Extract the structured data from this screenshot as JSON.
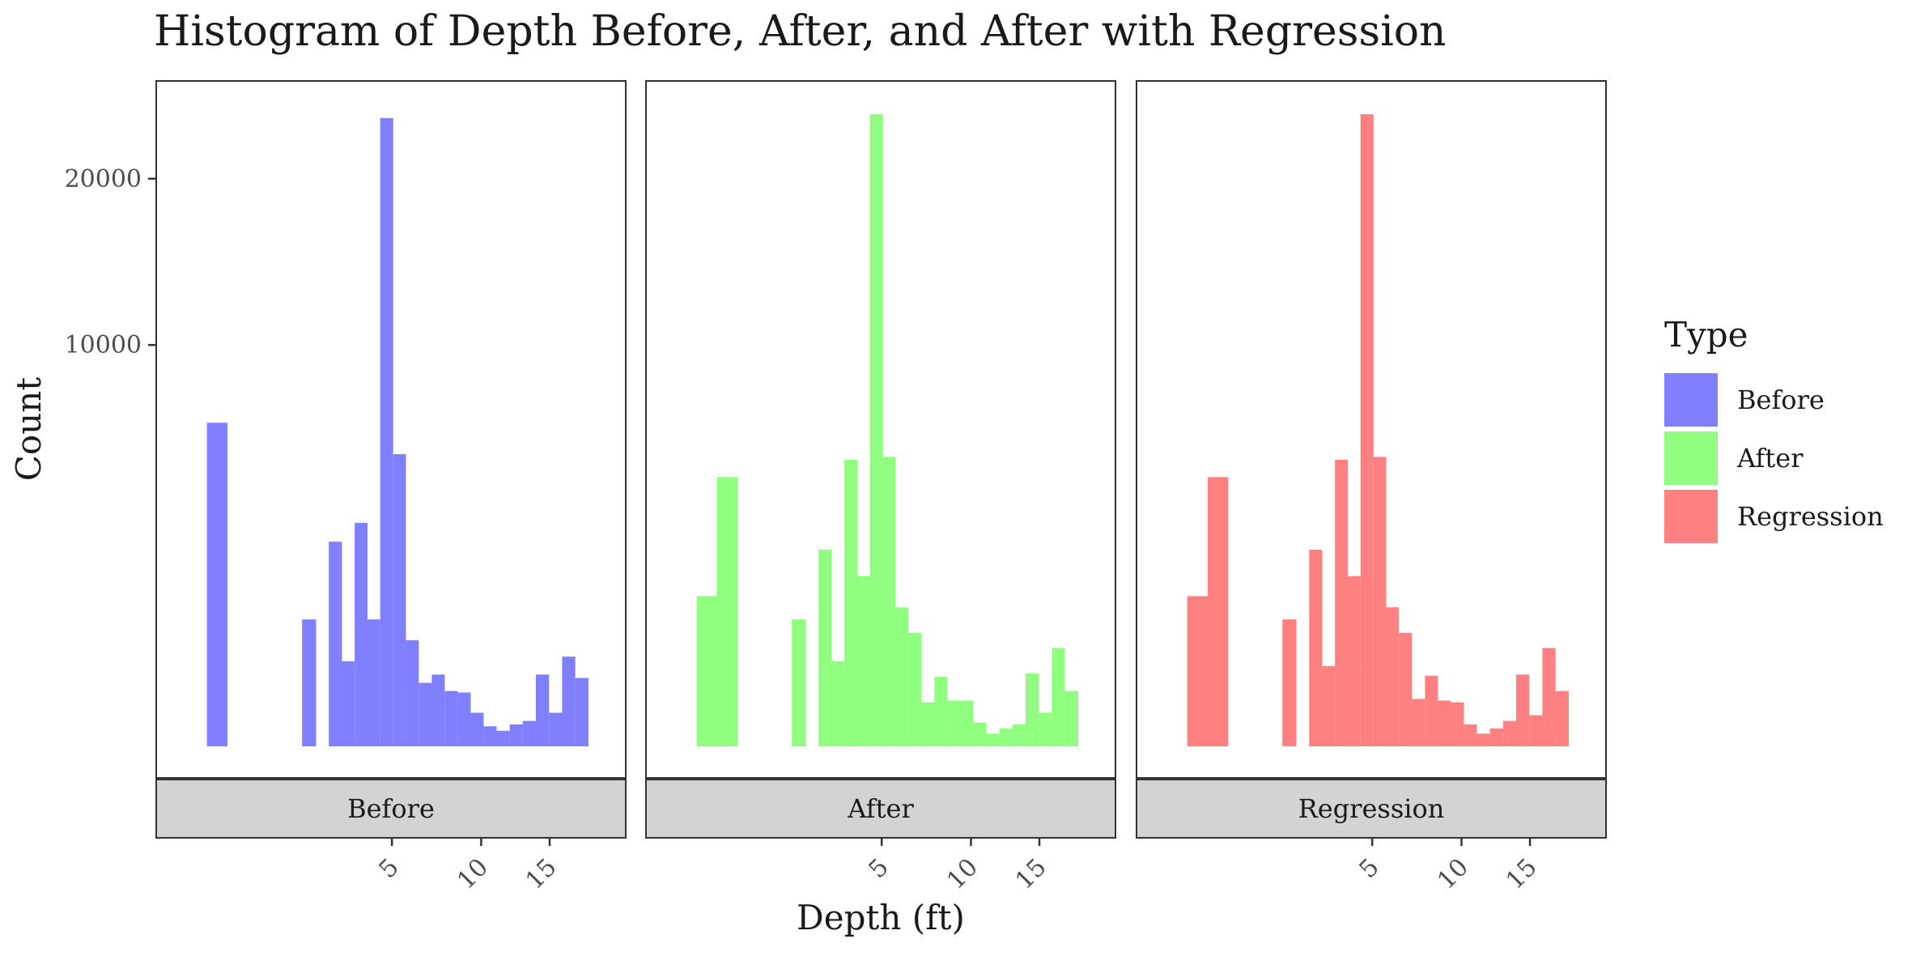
{
  "chart_data": {
    "type": "bar",
    "title": "Histogram of Depth Before, After, and After with Regression",
    "xlabel": "Depth (ft)",
    "ylabel": "Count",
    "y_scale": "sqrt",
    "ylim": [
      0,
      26000
    ],
    "x_scale": "sqrt",
    "xlim": [
      0,
      19.6
    ],
    "x_ticks": [
      5,
      10,
      15
    ],
    "x_tick_labels": [
      "5",
      "10",
      "15"
    ],
    "y_ticks": [
      10000,
      20000
    ],
    "y_tick_labels": [
      "10000",
      "20000"
    ],
    "grid": false,
    "legend": {
      "title": "Type",
      "position": "right",
      "items": [
        {
          "label": "Before",
          "color": "#8080FF"
        },
        {
          "label": "After",
          "color": "#90FF80"
        },
        {
          "label": "Regression",
          "color": "#FF8080"
        }
      ]
    },
    "panels": [
      {
        "strip": "Before",
        "color": "#8080FF",
        "bars": [
          {
            "x0": 0.1,
            "x1": 0.28,
            "y": 6500
          },
          {
            "x0": 1.7,
            "x1": 2.1,
            "y": 1000
          },
          {
            "x0": 2.5,
            "x1": 2.95,
            "y": 2600
          },
          {
            "x0": 2.95,
            "x1": 3.42,
            "y": 450
          },
          {
            "x0": 3.42,
            "x1": 3.93,
            "y": 3100
          },
          {
            "x0": 3.93,
            "x1": 4.47,
            "y": 1000
          },
          {
            "x0": 4.47,
            "x1": 5.06,
            "y": 24500
          },
          {
            "x0": 5.06,
            "x1": 5.67,
            "y": 5300
          },
          {
            "x0": 5.67,
            "x1": 6.32,
            "y": 700
          },
          {
            "x0": 6.32,
            "x1": 7.02,
            "y": 250
          },
          {
            "x0": 7.02,
            "x1": 7.75,
            "y": 320
          },
          {
            "x0": 7.75,
            "x1": 8.52,
            "y": 190
          },
          {
            "x0": 8.52,
            "x1": 9.32,
            "y": 180
          },
          {
            "x0": 9.32,
            "x1": 10.16,
            "y": 70
          },
          {
            "x0": 10.16,
            "x1": 11.04,
            "y": 25
          },
          {
            "x0": 11.04,
            "x1": 11.96,
            "y": 15
          },
          {
            "x0": 11.96,
            "x1": 12.91,
            "y": 30
          },
          {
            "x0": 12.91,
            "x1": 13.91,
            "y": 40
          },
          {
            "x0": 13.91,
            "x1": 14.95,
            "y": 320
          },
          {
            "x0": 14.95,
            "x1": 16.02,
            "y": 70
          },
          {
            "x0": 16.02,
            "x1": 17.13,
            "y": 500
          },
          {
            "x0": 17.13,
            "x1": 18.28,
            "y": 290
          }
        ]
      },
      {
        "strip": "After",
        "color": "#90FF80",
        "bars": [
          {
            "x0": 0.1,
            "x1": 0.28,
            "y": 1400
          },
          {
            "x0": 0.28,
            "x1": 0.55,
            "y": 4500
          },
          {
            "x0": 1.7,
            "x1": 2.1,
            "y": 1000
          },
          {
            "x0": 2.5,
            "x1": 2.95,
            "y": 2400
          },
          {
            "x0": 2.95,
            "x1": 3.42,
            "y": 450
          },
          {
            "x0": 3.42,
            "x1": 3.93,
            "y": 5100
          },
          {
            "x0": 3.93,
            "x1": 4.47,
            "y": 1800
          },
          {
            "x0": 4.47,
            "x1": 5.06,
            "y": 24800
          },
          {
            "x0": 5.06,
            "x1": 5.67,
            "y": 5200
          },
          {
            "x0": 5.67,
            "x1": 6.32,
            "y": 1200
          },
          {
            "x0": 6.32,
            "x1": 7.02,
            "y": 800
          },
          {
            "x0": 7.02,
            "x1": 7.75,
            "y": 120
          },
          {
            "x0": 7.75,
            "x1": 8.52,
            "y": 300
          },
          {
            "x0": 8.52,
            "x1": 9.32,
            "y": 130
          },
          {
            "x0": 9.32,
            "x1": 10.16,
            "y": 130
          },
          {
            "x0": 10.16,
            "x1": 11.04,
            "y": 35
          },
          {
            "x0": 11.04,
            "x1": 11.96,
            "y": 10
          },
          {
            "x0": 11.96,
            "x1": 12.91,
            "y": 20
          },
          {
            "x0": 12.91,
            "x1": 13.91,
            "y": 30
          },
          {
            "x0": 13.91,
            "x1": 14.95,
            "y": 330
          },
          {
            "x0": 14.95,
            "x1": 16.02,
            "y": 70
          },
          {
            "x0": 16.02,
            "x1": 17.13,
            "y": 600
          },
          {
            "x0": 17.13,
            "x1": 18.28,
            "y": 190
          }
        ]
      },
      {
        "strip": "Regression",
        "color": "#FF8080",
        "bars": [
          {
            "x0": 0.1,
            "x1": 0.28,
            "y": 1400
          },
          {
            "x0": 0.28,
            "x1": 0.55,
            "y": 4500
          },
          {
            "x0": 1.7,
            "x1": 2.1,
            "y": 1000
          },
          {
            "x0": 2.5,
            "x1": 2.95,
            "y": 2400
          },
          {
            "x0": 2.95,
            "x1": 3.42,
            "y": 400
          },
          {
            "x0": 3.42,
            "x1": 3.93,
            "y": 5100
          },
          {
            "x0": 3.93,
            "x1": 4.47,
            "y": 1800
          },
          {
            "x0": 4.47,
            "x1": 5.06,
            "y": 24800
          },
          {
            "x0": 5.06,
            "x1": 5.67,
            "y": 5200
          },
          {
            "x0": 5.67,
            "x1": 6.32,
            "y": 1200
          },
          {
            "x0": 6.32,
            "x1": 7.02,
            "y": 800
          },
          {
            "x0": 7.02,
            "x1": 7.75,
            "y": 140
          },
          {
            "x0": 7.75,
            "x1": 8.52,
            "y": 310
          },
          {
            "x0": 8.52,
            "x1": 9.32,
            "y": 130
          },
          {
            "x0": 9.32,
            "x1": 10.16,
            "y": 120
          },
          {
            "x0": 10.16,
            "x1": 11.04,
            "y": 30
          },
          {
            "x0": 11.04,
            "x1": 11.96,
            "y": 10
          },
          {
            "x0": 11.96,
            "x1": 12.91,
            "y": 20
          },
          {
            "x0": 12.91,
            "x1": 13.91,
            "y": 40
          },
          {
            "x0": 13.91,
            "x1": 14.95,
            "y": 320
          },
          {
            "x0": 14.95,
            "x1": 16.02,
            "y": 60
          },
          {
            "x0": 16.02,
            "x1": 17.13,
            "y": 600
          },
          {
            "x0": 17.13,
            "x1": 18.28,
            "y": 190
          }
        ]
      }
    ]
  }
}
